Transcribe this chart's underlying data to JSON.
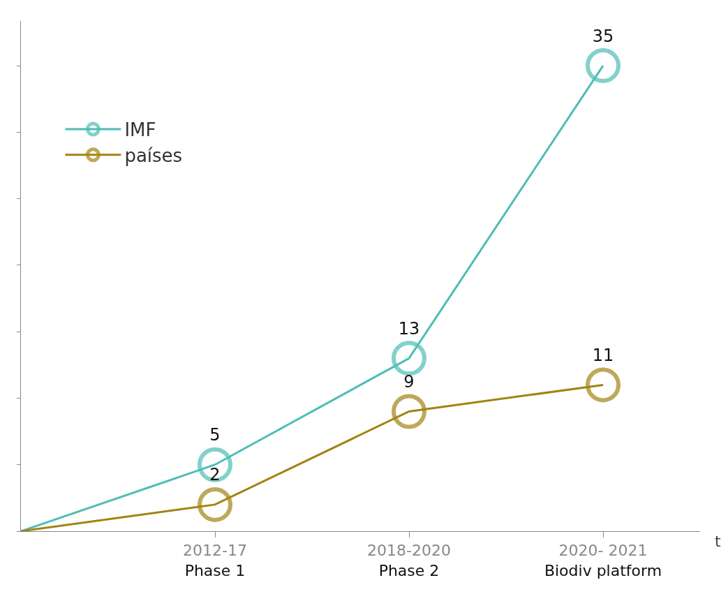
{
  "chart_data": {
    "type": "line",
    "xlabel": "t",
    "categories": [
      null,
      "2012-17\nPhase 1",
      "2018-2020\nPhase 2",
      "2020- 2021\nBiodiv platform"
    ],
    "series": [
      {
        "name": "IMF",
        "color": "#4dbdb5",
        "values": [
          0,
          5,
          13,
          35
        ],
        "value_labels": [
          null,
          "5",
          "13",
          "35"
        ]
      },
      {
        "name": "países",
        "color": "#a38312",
        "values": [
          0,
          2,
          9,
          11
        ],
        "value_labels": [
          null,
          "2",
          "9",
          "11"
        ]
      }
    ],
    "marker": "circle",
    "line_style": "solid",
    "legend": "top left",
    "grid": false,
    "tick_labels": "x"
  }
}
